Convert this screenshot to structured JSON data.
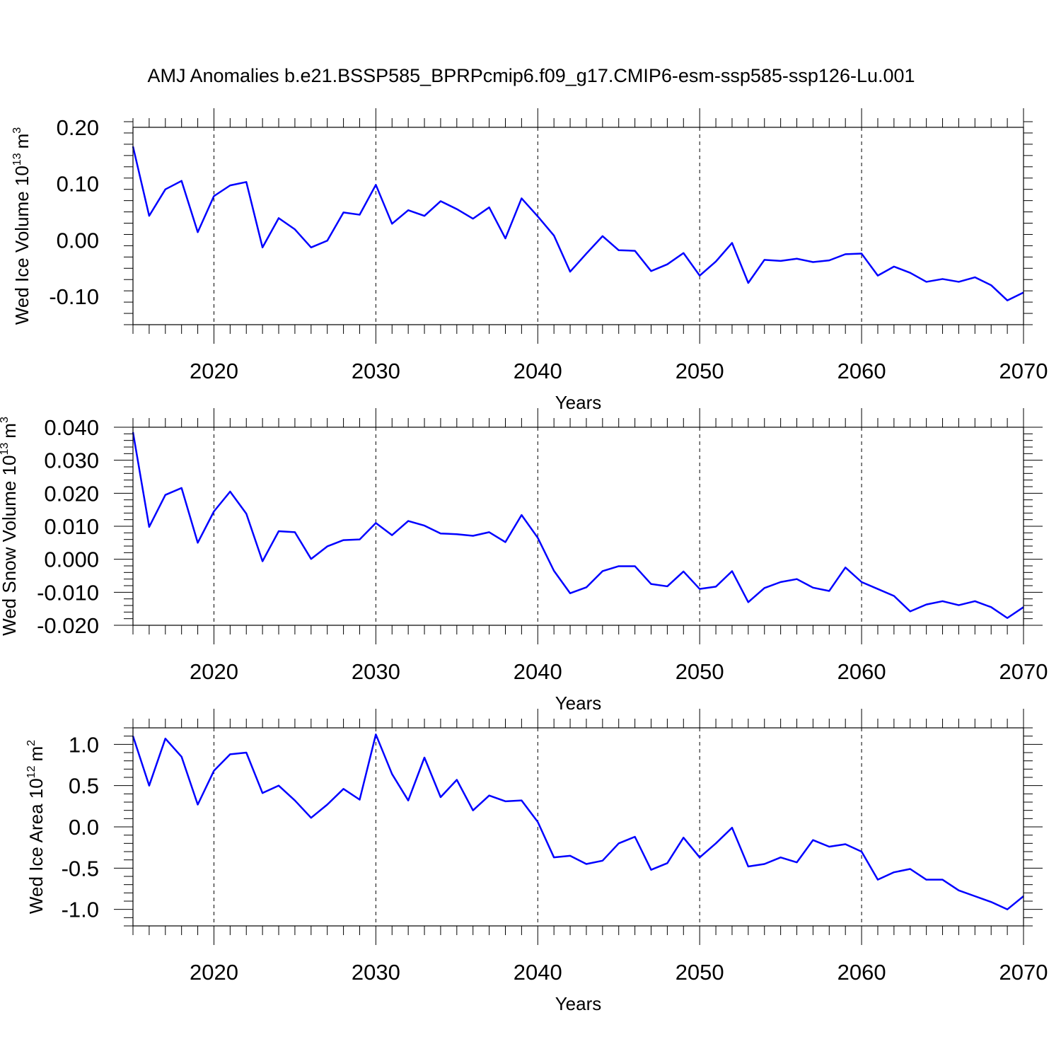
{
  "figure": {
    "title": "AMJ Anomalies b.e21.BSSP585_BPRPcmip6.f09_g17.CMIP6-esm-ssp585-ssp126-Lu.001"
  },
  "chart_data": [
    {
      "type": "line",
      "title": "AMJ Anomalies b.e21.BSSP585_BPRPcmip6.f09_g17.CMIP6-esm-ssp585-ssp126-Lu.001",
      "xlabel": "Years",
      "ylabel": {
        "text": "Wed Ice Volume 10",
        "sup": "13",
        "unit": "m",
        "unit_sup": "3"
      },
      "xlim": [
        2015,
        2070
      ],
      "ylim": [
        -0.15,
        0.2
      ],
      "xticks": [
        2020,
        2030,
        2040,
        2050,
        2060,
        2070
      ],
      "yticks": [
        0.2,
        0.1,
        0.0,
        -0.1
      ],
      "ytick_labels": [
        "0.20",
        "0.10",
        "0.00",
        "-0.10"
      ],
      "yminor_step": 0.02,
      "grid": "dashed vertical lines at major x ticks",
      "color": "#0000ff",
      "series": [
        {
          "x_start": 2015,
          "values": [
            0.166,
            0.043,
            0.09,
            0.105,
            0.014,
            0.078,
            0.097,
            0.103,
            -0.013,
            0.039,
            0.019,
            -0.013,
            -0.001,
            0.049,
            0.045,
            0.098,
            0.029,
            0.053,
            0.043,
            0.069,
            0.055,
            0.038,
            0.058,
            0.003,
            0.074,
            0.042,
            0.008,
            -0.056,
            -0.024,
            0.007,
            -0.018,
            -0.019,
            -0.055,
            -0.043,
            -0.023,
            -0.063,
            -0.038,
            -0.005,
            -0.076,
            -0.035,
            -0.037,
            -0.033,
            -0.039,
            -0.036,
            -0.025,
            -0.024,
            -0.063,
            -0.047,
            -0.058,
            -0.074,
            -0.069,
            -0.074,
            -0.066,
            -0.08,
            -0.107,
            -0.093
          ]
        }
      ]
    },
    {
      "type": "line",
      "xlabel": "Years",
      "ylabel": {
        "text": "Wed Snow Volume 10",
        "sup": "13",
        "unit": "m",
        "unit_sup": "3"
      },
      "xlim": [
        2015,
        2070
      ],
      "ylim": [
        -0.02,
        0.04
      ],
      "xticks": [
        2020,
        2030,
        2040,
        2050,
        2060,
        2070
      ],
      "yticks": [
        0.04,
        0.03,
        0.02,
        0.01,
        0.0,
        -0.01,
        -0.02
      ],
      "ytick_labels": [
        "0.040",
        "0.030",
        "0.020",
        "0.010",
        "0.000",
        "-0.010",
        "-0.020"
      ],
      "yminor_step": 0.002,
      "grid": "dashed vertical lines at major x ticks",
      "color": "#0000ff",
      "series": [
        {
          "x_start": 2015,
          "values": [
            0.0385,
            0.0098,
            0.0195,
            0.0216,
            0.005,
            0.0145,
            0.0205,
            0.0138,
            -0.0006,
            0.0085,
            0.0082,
            0.0001,
            0.0039,
            0.0058,
            0.006,
            0.011,
            0.0073,
            0.0116,
            0.0102,
            0.0078,
            0.0076,
            0.0071,
            0.0082,
            0.0052,
            0.0134,
            0.0065,
            -0.0035,
            -0.0103,
            -0.0085,
            -0.0036,
            -0.0021,
            -0.0021,
            -0.0075,
            -0.0082,
            -0.0037,
            -0.009,
            -0.0083,
            -0.0036,
            -0.013,
            -0.0087,
            -0.0069,
            -0.006,
            -0.0086,
            -0.0096,
            -0.0025,
            -0.0069,
            -0.009,
            -0.0111,
            -0.0158,
            -0.0137,
            -0.0127,
            -0.0139,
            -0.0127,
            -0.0145,
            -0.0178,
            -0.0145
          ]
        }
      ]
    },
    {
      "type": "line",
      "xlabel": "Years",
      "ylabel": {
        "text": "Wed Ice Area 10",
        "sup": "12",
        "unit": "m",
        "unit_sup": "2"
      },
      "xlim": [
        2015,
        2070
      ],
      "ylim": [
        -1.2,
        1.2
      ],
      "xticks": [
        2020,
        2030,
        2040,
        2050,
        2060,
        2070
      ],
      "yticks": [
        1.0,
        0.5,
        0.0,
        -0.5,
        -1.0
      ],
      "ytick_labels": [
        "1.0",
        "0.5",
        "0.0",
        "-0.5",
        "-1.0"
      ],
      "yminor_step": 0.1,
      "grid": "dashed vertical lines at major x ticks",
      "color": "#0000ff",
      "series": [
        {
          "x_start": 2015,
          "values": [
            1.1,
            0.5,
            1.07,
            0.85,
            0.27,
            0.68,
            0.88,
            0.9,
            0.41,
            0.5,
            0.32,
            0.11,
            0.27,
            0.46,
            0.33,
            1.12,
            0.64,
            0.32,
            0.84,
            0.36,
            0.57,
            0.2,
            0.38,
            0.31,
            0.32,
            0.06,
            -0.37,
            -0.35,
            -0.45,
            -0.41,
            -0.2,
            -0.12,
            -0.52,
            -0.44,
            -0.13,
            -0.37,
            -0.2,
            -0.01,
            -0.48,
            -0.45,
            -0.37,
            -0.43,
            -0.16,
            -0.24,
            -0.21,
            -0.3,
            -0.64,
            -0.55,
            -0.51,
            -0.64,
            -0.64,
            -0.77,
            -0.84,
            -0.91,
            -1.0,
            -0.84
          ]
        }
      ]
    }
  ]
}
